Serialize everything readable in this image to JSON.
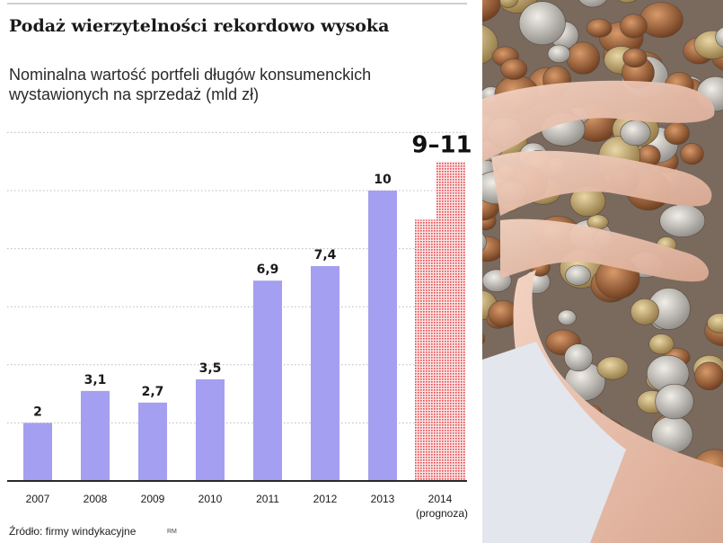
{
  "title": "Podaż wierzytelności rekordowo wysoka",
  "subtitle_line1": "Nominalna wartość portfeli długów konsumenckich",
  "subtitle_line2": "wystawionych na sprzedaż (mld zł)",
  "source": "Źródło: firmy windykacyjne",
  "initials": "RM",
  "colors": {
    "bar": "#a49ff0",
    "forecast": "#e8484f",
    "text": "#1a1a1a"
  },
  "chart_data": {
    "type": "bar",
    "categories": [
      "2007",
      "2008",
      "2009",
      "2010",
      "2011",
      "2012",
      "2013",
      "2014"
    ],
    "category_notes": [
      "",
      "",
      "",
      "",
      "",
      "",
      "",
      "(prognoza)"
    ],
    "values": [
      2,
      3.1,
      2.7,
      3.5,
      6.9,
      7.4,
      10,
      null
    ],
    "value_labels": [
      "2",
      "3,1",
      "2,7",
      "3,5",
      "6,9",
      "7,4",
      "10",
      "9–11"
    ],
    "forecast": {
      "category": "2014",
      "low": 9,
      "high": 11,
      "label": "9–11"
    },
    "ylim": [
      0,
      12
    ],
    "grid": true,
    "xlabel": "",
    "ylabel": ""
  }
}
